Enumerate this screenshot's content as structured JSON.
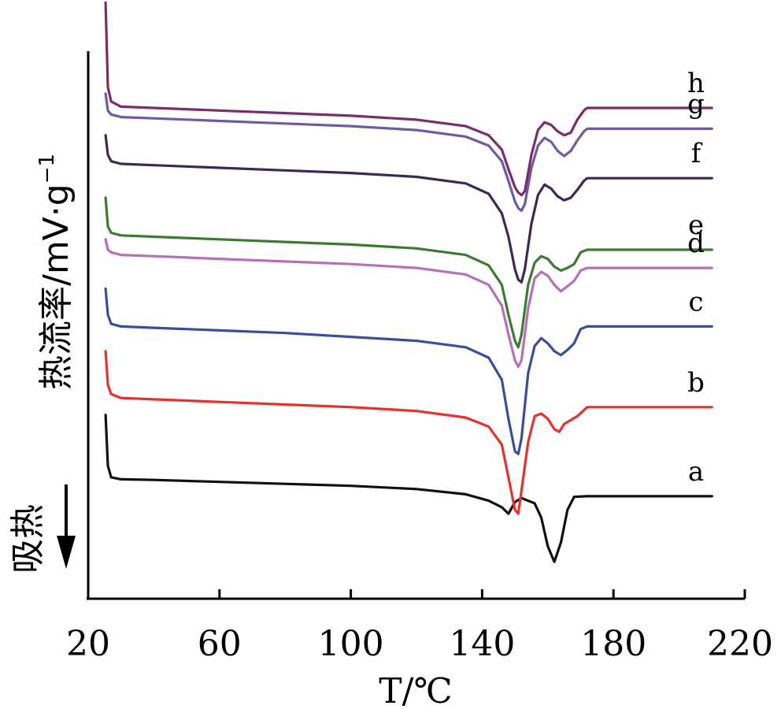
{
  "chart_data": {
    "type": "line",
    "xlabel": "T/℃",
    "ylabel_main": "热流率/mV·g",
    "ylabel_sup": "−1",
    "endotherm_label": "吸热",
    "xlim": [
      20,
      220
    ],
    "xticks": [
      20,
      60,
      100,
      140,
      180,
      220
    ],
    "grid": false,
    "series": [
      {
        "name": "a",
        "color": "#111111",
        "points": [
          [
            25.3,
            6.3
          ],
          [
            26,
            2.4
          ],
          [
            27,
            1.5
          ],
          [
            30,
            1.35
          ],
          [
            40,
            1.3
          ],
          [
            60,
            1.15
          ],
          [
            80,
            1.0
          ],
          [
            100,
            0.85
          ],
          [
            120,
            0.6
          ],
          [
            135,
            0.2
          ],
          [
            142,
            -0.3
          ],
          [
            146,
            -0.8
          ],
          [
            148,
            -1.3
          ],
          [
            150,
            -0.4
          ],
          [
            152,
            -0.1
          ],
          [
            156,
            -0.5
          ],
          [
            158,
            -1.6
          ],
          [
            160,
            -3.8
          ],
          [
            162,
            -5.0
          ],
          [
            164,
            -3.5
          ],
          [
            166,
            -1.0
          ],
          [
            168,
            0.0
          ],
          [
            172,
            0.05
          ],
          [
            190,
            0.05
          ],
          [
            210,
            0.05
          ]
        ]
      },
      {
        "name": "b",
        "color": "#e8312b",
        "points": [
          [
            25.3,
            11.2
          ],
          [
            26,
            8.6
          ],
          [
            27,
            7.9
          ],
          [
            30,
            7.6
          ],
          [
            40,
            7.5
          ],
          [
            60,
            7.3
          ],
          [
            80,
            7.1
          ],
          [
            100,
            6.9
          ],
          [
            120,
            6.6
          ],
          [
            135,
            6.1
          ],
          [
            142,
            5.4
          ],
          [
            146,
            4.0
          ],
          [
            148,
            1.5
          ],
          [
            150,
            -1.0
          ],
          [
            151,
            -1.3
          ],
          [
            152,
            0.5
          ],
          [
            154,
            4.2
          ],
          [
            156,
            6.2
          ],
          [
            158,
            6.4
          ],
          [
            160,
            6.0
          ],
          [
            162,
            5.2
          ],
          [
            163.5,
            5.0
          ],
          [
            165,
            5.6
          ],
          [
            167,
            5.9
          ],
          [
            169,
            6.2
          ],
          [
            172,
            6.9
          ],
          [
            190,
            6.9
          ],
          [
            210,
            6.9
          ]
        ]
      },
      {
        "name": "c",
        "color": "#3a4f9c",
        "points": [
          [
            25.3,
            16.0
          ],
          [
            26,
            14.0
          ],
          [
            27,
            13.3
          ],
          [
            30,
            13.1
          ],
          [
            40,
            13.0
          ],
          [
            60,
            12.8
          ],
          [
            80,
            12.6
          ],
          [
            100,
            12.3
          ],
          [
            120,
            12.0
          ],
          [
            135,
            11.5
          ],
          [
            142,
            10.7
          ],
          [
            146,
            9.0
          ],
          [
            148,
            6.0
          ],
          [
            150,
            3.5
          ],
          [
            151,
            3.3
          ],
          [
            152,
            4.5
          ],
          [
            154,
            9.5
          ],
          [
            156,
            11.6
          ],
          [
            158,
            12.2
          ],
          [
            160,
            11.8
          ],
          [
            162,
            11.2
          ],
          [
            164,
            10.9
          ],
          [
            166,
            11.3
          ],
          [
            168,
            11.8
          ],
          [
            170,
            12.9
          ],
          [
            172,
            13.1
          ],
          [
            190,
            13.1
          ],
          [
            210,
            13.1
          ]
        ]
      },
      {
        "name": "d",
        "color": "#b86fb9",
        "points": [
          [
            25.3,
            19.8
          ],
          [
            26,
            19.0
          ],
          [
            27,
            18.8
          ],
          [
            30,
            18.6
          ],
          [
            40,
            18.5
          ],
          [
            60,
            18.3
          ],
          [
            80,
            18.1
          ],
          [
            100,
            17.9
          ],
          [
            120,
            17.6
          ],
          [
            135,
            17.1
          ],
          [
            142,
            16.3
          ],
          [
            146,
            14.7
          ],
          [
            148,
            12.5
          ],
          [
            150,
            10.5
          ],
          [
            151,
            10.0
          ],
          [
            152,
            10.5
          ],
          [
            154,
            14.5
          ],
          [
            156,
            16.8
          ],
          [
            158,
            17.3
          ],
          [
            160,
            17.0
          ],
          [
            162,
            16.3
          ],
          [
            164,
            15.8
          ],
          [
            166,
            16.2
          ],
          [
            168,
            16.6
          ],
          [
            170,
            17.4
          ],
          [
            172,
            17.6
          ],
          [
            190,
            17.6
          ],
          [
            210,
            17.6
          ]
        ]
      },
      {
        "name": "e",
        "color": "#3d7a31",
        "points": [
          [
            25.3,
            23.0
          ],
          [
            26,
            20.8
          ],
          [
            27,
            20.3
          ],
          [
            30,
            20.1
          ],
          [
            40,
            20.0
          ],
          [
            60,
            19.8
          ],
          [
            80,
            19.6
          ],
          [
            100,
            19.4
          ],
          [
            120,
            19.1
          ],
          [
            135,
            18.6
          ],
          [
            142,
            17.8
          ],
          [
            146,
            16.3
          ],
          [
            148,
            14.0
          ],
          [
            150,
            12.0
          ],
          [
            151,
            11.5
          ],
          [
            152,
            12.5
          ],
          [
            154,
            16.3
          ],
          [
            156,
            18.0
          ],
          [
            158,
            18.5
          ],
          [
            160,
            18.3
          ],
          [
            162,
            17.7
          ],
          [
            164,
            17.4
          ],
          [
            166,
            17.6
          ],
          [
            168,
            17.9
          ],
          [
            170,
            18.8
          ],
          [
            172,
            19.0
          ],
          [
            190,
            19.0
          ],
          [
            210,
            19.0
          ]
        ]
      },
      {
        "name": "f",
        "color": "#3b2a55",
        "points": [
          [
            25.3,
            27.8
          ],
          [
            26,
            26.3
          ],
          [
            27,
            25.8
          ],
          [
            30,
            25.6
          ],
          [
            40,
            25.5
          ],
          [
            60,
            25.3
          ],
          [
            80,
            25.1
          ],
          [
            100,
            24.9
          ],
          [
            120,
            24.6
          ],
          [
            135,
            24.1
          ],
          [
            142,
            23.3
          ],
          [
            146,
            21.8
          ],
          [
            148,
            20.0
          ],
          [
            150,
            17.5
          ],
          [
            151,
            16.7
          ],
          [
            152,
            16.5
          ],
          [
            153,
            17.5
          ],
          [
            155,
            21.0
          ],
          [
            157,
            23.2
          ],
          [
            159,
            24.0
          ],
          [
            161,
            23.7
          ],
          [
            163,
            23.1
          ],
          [
            165,
            22.8
          ],
          [
            167,
            23.0
          ],
          [
            169,
            23.6
          ],
          [
            171,
            24.3
          ],
          [
            172,
            24.5
          ],
          [
            190,
            24.5
          ],
          [
            210,
            24.5
          ]
        ]
      },
      {
        "name": "g",
        "color": "#6f5aa5",
        "points": [
          [
            25.3,
            31.0
          ],
          [
            26,
            29.7
          ],
          [
            27,
            29.4
          ],
          [
            30,
            29.2
          ],
          [
            40,
            29.1
          ],
          [
            60,
            28.9
          ],
          [
            80,
            28.7
          ],
          [
            100,
            28.5
          ],
          [
            120,
            28.2
          ],
          [
            135,
            27.7
          ],
          [
            142,
            27.0
          ],
          [
            146,
            25.8
          ],
          [
            148,
            24.3
          ],
          [
            150,
            22.7
          ],
          [
            151,
            22.2
          ],
          [
            152,
            22.0
          ],
          [
            153,
            22.5
          ],
          [
            155,
            25.3
          ],
          [
            157,
            27.0
          ],
          [
            159,
            27.6
          ],
          [
            161,
            27.3
          ],
          [
            163,
            26.6
          ],
          [
            165,
            26.2
          ],
          [
            167,
            26.6
          ],
          [
            169,
            27.4
          ],
          [
            171,
            28.1
          ],
          [
            172,
            28.3
          ],
          [
            190,
            28.3
          ],
          [
            210,
            28.3
          ]
        ]
      },
      {
        "name": "h",
        "color": "#7b2c6b",
        "points": [
          [
            25.3,
            38.0
          ],
          [
            26,
            31.5
          ],
          [
            27,
            30.4
          ],
          [
            30,
            30.0
          ],
          [
            40,
            29.9
          ],
          [
            60,
            29.7
          ],
          [
            80,
            29.5
          ],
          [
            100,
            29.3
          ],
          [
            120,
            29.0
          ],
          [
            135,
            28.5
          ],
          [
            142,
            27.8
          ],
          [
            146,
            26.7
          ],
          [
            148,
            25.2
          ],
          [
            150,
            23.8
          ],
          [
            151,
            23.4
          ],
          [
            152,
            23.2
          ],
          [
            153,
            23.5
          ],
          [
            155,
            26.3
          ],
          [
            157,
            28.2
          ],
          [
            159,
            28.8
          ],
          [
            161,
            28.6
          ],
          [
            163,
            28.1
          ],
          [
            165,
            27.8
          ],
          [
            167,
            28.0
          ],
          [
            169,
            29.0
          ],
          [
            171,
            29.7
          ],
          [
            172,
            29.9
          ],
          [
            190,
            29.9
          ],
          [
            210,
            29.9
          ]
        ]
      }
    ]
  }
}
